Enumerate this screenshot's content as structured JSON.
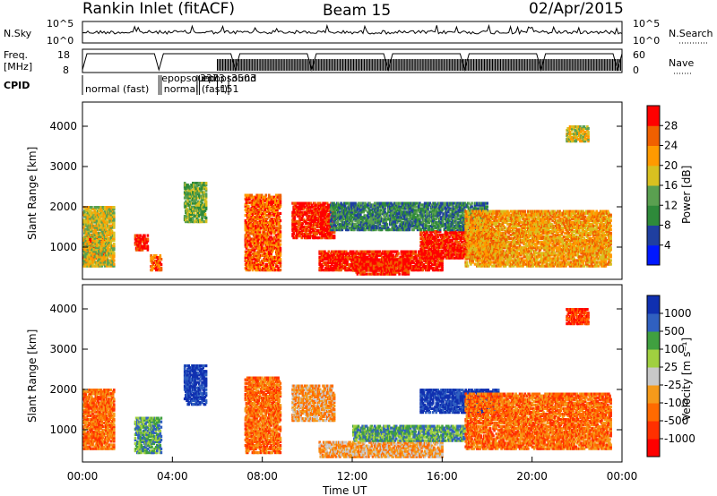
{
  "header": {
    "station": "Rankin Inlet (fitACF)",
    "beam": "Beam 15",
    "date": "02/Apr/2015"
  },
  "summary_panel": {
    "nsky_label": "N.Sky",
    "nsky_ticks": [
      "10^5",
      "10^0"
    ],
    "nsearch_label": "N.Search",
    "nsearch_ticks": [
      "10^5",
      "10^0"
    ],
    "freq_label": "Freq.",
    "freq_unit": "[MHz]",
    "freq_ticks": [
      "18",
      "8"
    ],
    "nave_label": "Nave",
    "nave_ticks": [
      "60",
      "0"
    ],
    "cpid_label": "CPID",
    "cpid_entries": [
      {
        "text": "normal (fast)",
        "start_h": 0.0
      },
      {
        "text": "epopsound",
        "start_h": 3.4
      },
      {
        "text": "3373",
        "start_h": 5.1
      },
      {
        "text": "normal (fast)",
        "start_h": 3.5
      },
      {
        "text": "151",
        "start_h": 6.0
      },
      {
        "text": "epopsound",
        "start_h": 5.2
      },
      {
        "text": "3503",
        "start_h": 6.5
      }
    ]
  },
  "colors": {
    "power_scale": [
      "#0018ff",
      "#1f3fa0",
      "#2e8a3a",
      "#5aa050",
      "#d8c020",
      "#ff9a00",
      "#f06000",
      "#ff0000"
    ],
    "velocity_scale": [
      "#ff0000",
      "#ff3000",
      "#ff6a00",
      "#f59a1a",
      "#c8c8c8",
      "#a0d040",
      "#40a040",
      "#3060c0",
      "#1030b0"
    ]
  },
  "chart_data": [
    {
      "type": "heatmap",
      "name": "power",
      "xlabel": "Time UT",
      "ylabel": "Slant Range [km]",
      "xlim": [
        0,
        24
      ],
      "ylim": [
        200,
        4600
      ],
      "x_ticks": [
        "00:00",
        "04:00",
        "08:00",
        "12:00",
        "16:00",
        "20:00",
        "00:00"
      ],
      "y_ticks": [
        1000,
        2000,
        3000,
        4000
      ],
      "colorbar": {
        "label": "Power [dB]",
        "ticks": [
          "28",
          "24",
          "20",
          "16",
          "12",
          "8",
          "4"
        ]
      },
      "blobs": [
        {
          "t0": 0.0,
          "t1": 1.1,
          "r0": 650,
          "r1": 1250,
          "lvl": 7
        },
        {
          "t0": 0.0,
          "t1": 1.4,
          "r0": 500,
          "r1": 2000,
          "lvl": 4
        },
        {
          "t0": 2.3,
          "t1": 2.9,
          "r0": 900,
          "r1": 1300,
          "lvl": 7
        },
        {
          "t0": 3.0,
          "t1": 3.5,
          "r0": 400,
          "r1": 800,
          "lvl": 6
        },
        {
          "t0": 4.5,
          "t1": 5.5,
          "r0": 1600,
          "r1": 2600,
          "lvl": 3
        },
        {
          "t0": 7.2,
          "t1": 8.8,
          "r0": 400,
          "r1": 2300,
          "lvl": 6
        },
        {
          "t0": 9.3,
          "t1": 11.2,
          "r0": 1200,
          "r1": 2100,
          "lvl": 7
        },
        {
          "t0": 10.5,
          "t1": 16.0,
          "r0": 400,
          "r1": 900,
          "lvl": 7
        },
        {
          "t0": 12.0,
          "t1": 14.5,
          "r0": 300,
          "r1": 700,
          "lvl": 7
        },
        {
          "t0": 15.0,
          "t1": 18.5,
          "r0": 700,
          "r1": 1400,
          "lvl": 7
        },
        {
          "t0": 11.0,
          "t1": 18.0,
          "r0": 1400,
          "r1": 2100,
          "lvl": 2
        },
        {
          "t0": 17.0,
          "t1": 23.5,
          "r0": 500,
          "r1": 1900,
          "lvl": 5
        },
        {
          "t0": 21.5,
          "t1": 22.5,
          "r0": 3600,
          "r1": 4000,
          "lvl": 4
        }
      ]
    },
    {
      "type": "heatmap",
      "name": "velocity",
      "xlabel": "Time UT",
      "ylabel": "Slant Range [km]",
      "xlim": [
        0,
        24
      ],
      "ylim": [
        200,
        4600
      ],
      "x_ticks": [
        "00:00",
        "04:00",
        "08:00",
        "12:00",
        "16:00",
        "20:00",
        "00:00"
      ],
      "y_ticks": [
        1000,
        2000,
        3000,
        4000
      ],
      "colorbar": {
        "label": "Velocity [m s⁻¹]",
        "ticks": [
          "1000",
          "500",
          "100",
          "25",
          "-25",
          "-100",
          "-500",
          "-1000"
        ]
      },
      "blobs": [
        {
          "t0": 0.0,
          "t1": 1.4,
          "r0": 500,
          "r1": 2000,
          "lvl": 2
        },
        {
          "t0": 2.3,
          "t1": 3.5,
          "r0": 400,
          "r1": 1300,
          "lvl": 6
        },
        {
          "t0": 4.5,
          "t1": 5.5,
          "r0": 1600,
          "r1": 2600,
          "lvl": 8
        },
        {
          "t0": 7.2,
          "t1": 8.8,
          "r0": 400,
          "r1": 2300,
          "lvl": 2
        },
        {
          "t0": 9.3,
          "t1": 11.2,
          "r0": 1200,
          "r1": 2100,
          "lvl": 3
        },
        {
          "t0": 10.5,
          "t1": 16.0,
          "r0": 300,
          "r1": 700,
          "lvl": 3
        },
        {
          "t0": 12.0,
          "t1": 17.0,
          "r0": 700,
          "r1": 1100,
          "lvl": 6
        },
        {
          "t0": 15.0,
          "t1": 18.5,
          "r0": 1400,
          "r1": 2000,
          "lvl": 8
        },
        {
          "t0": 17.0,
          "t1": 23.5,
          "r0": 500,
          "r1": 1900,
          "lvl": 2
        },
        {
          "t0": 21.5,
          "t1": 22.5,
          "r0": 3600,
          "r1": 4000,
          "lvl": 1
        }
      ]
    }
  ]
}
